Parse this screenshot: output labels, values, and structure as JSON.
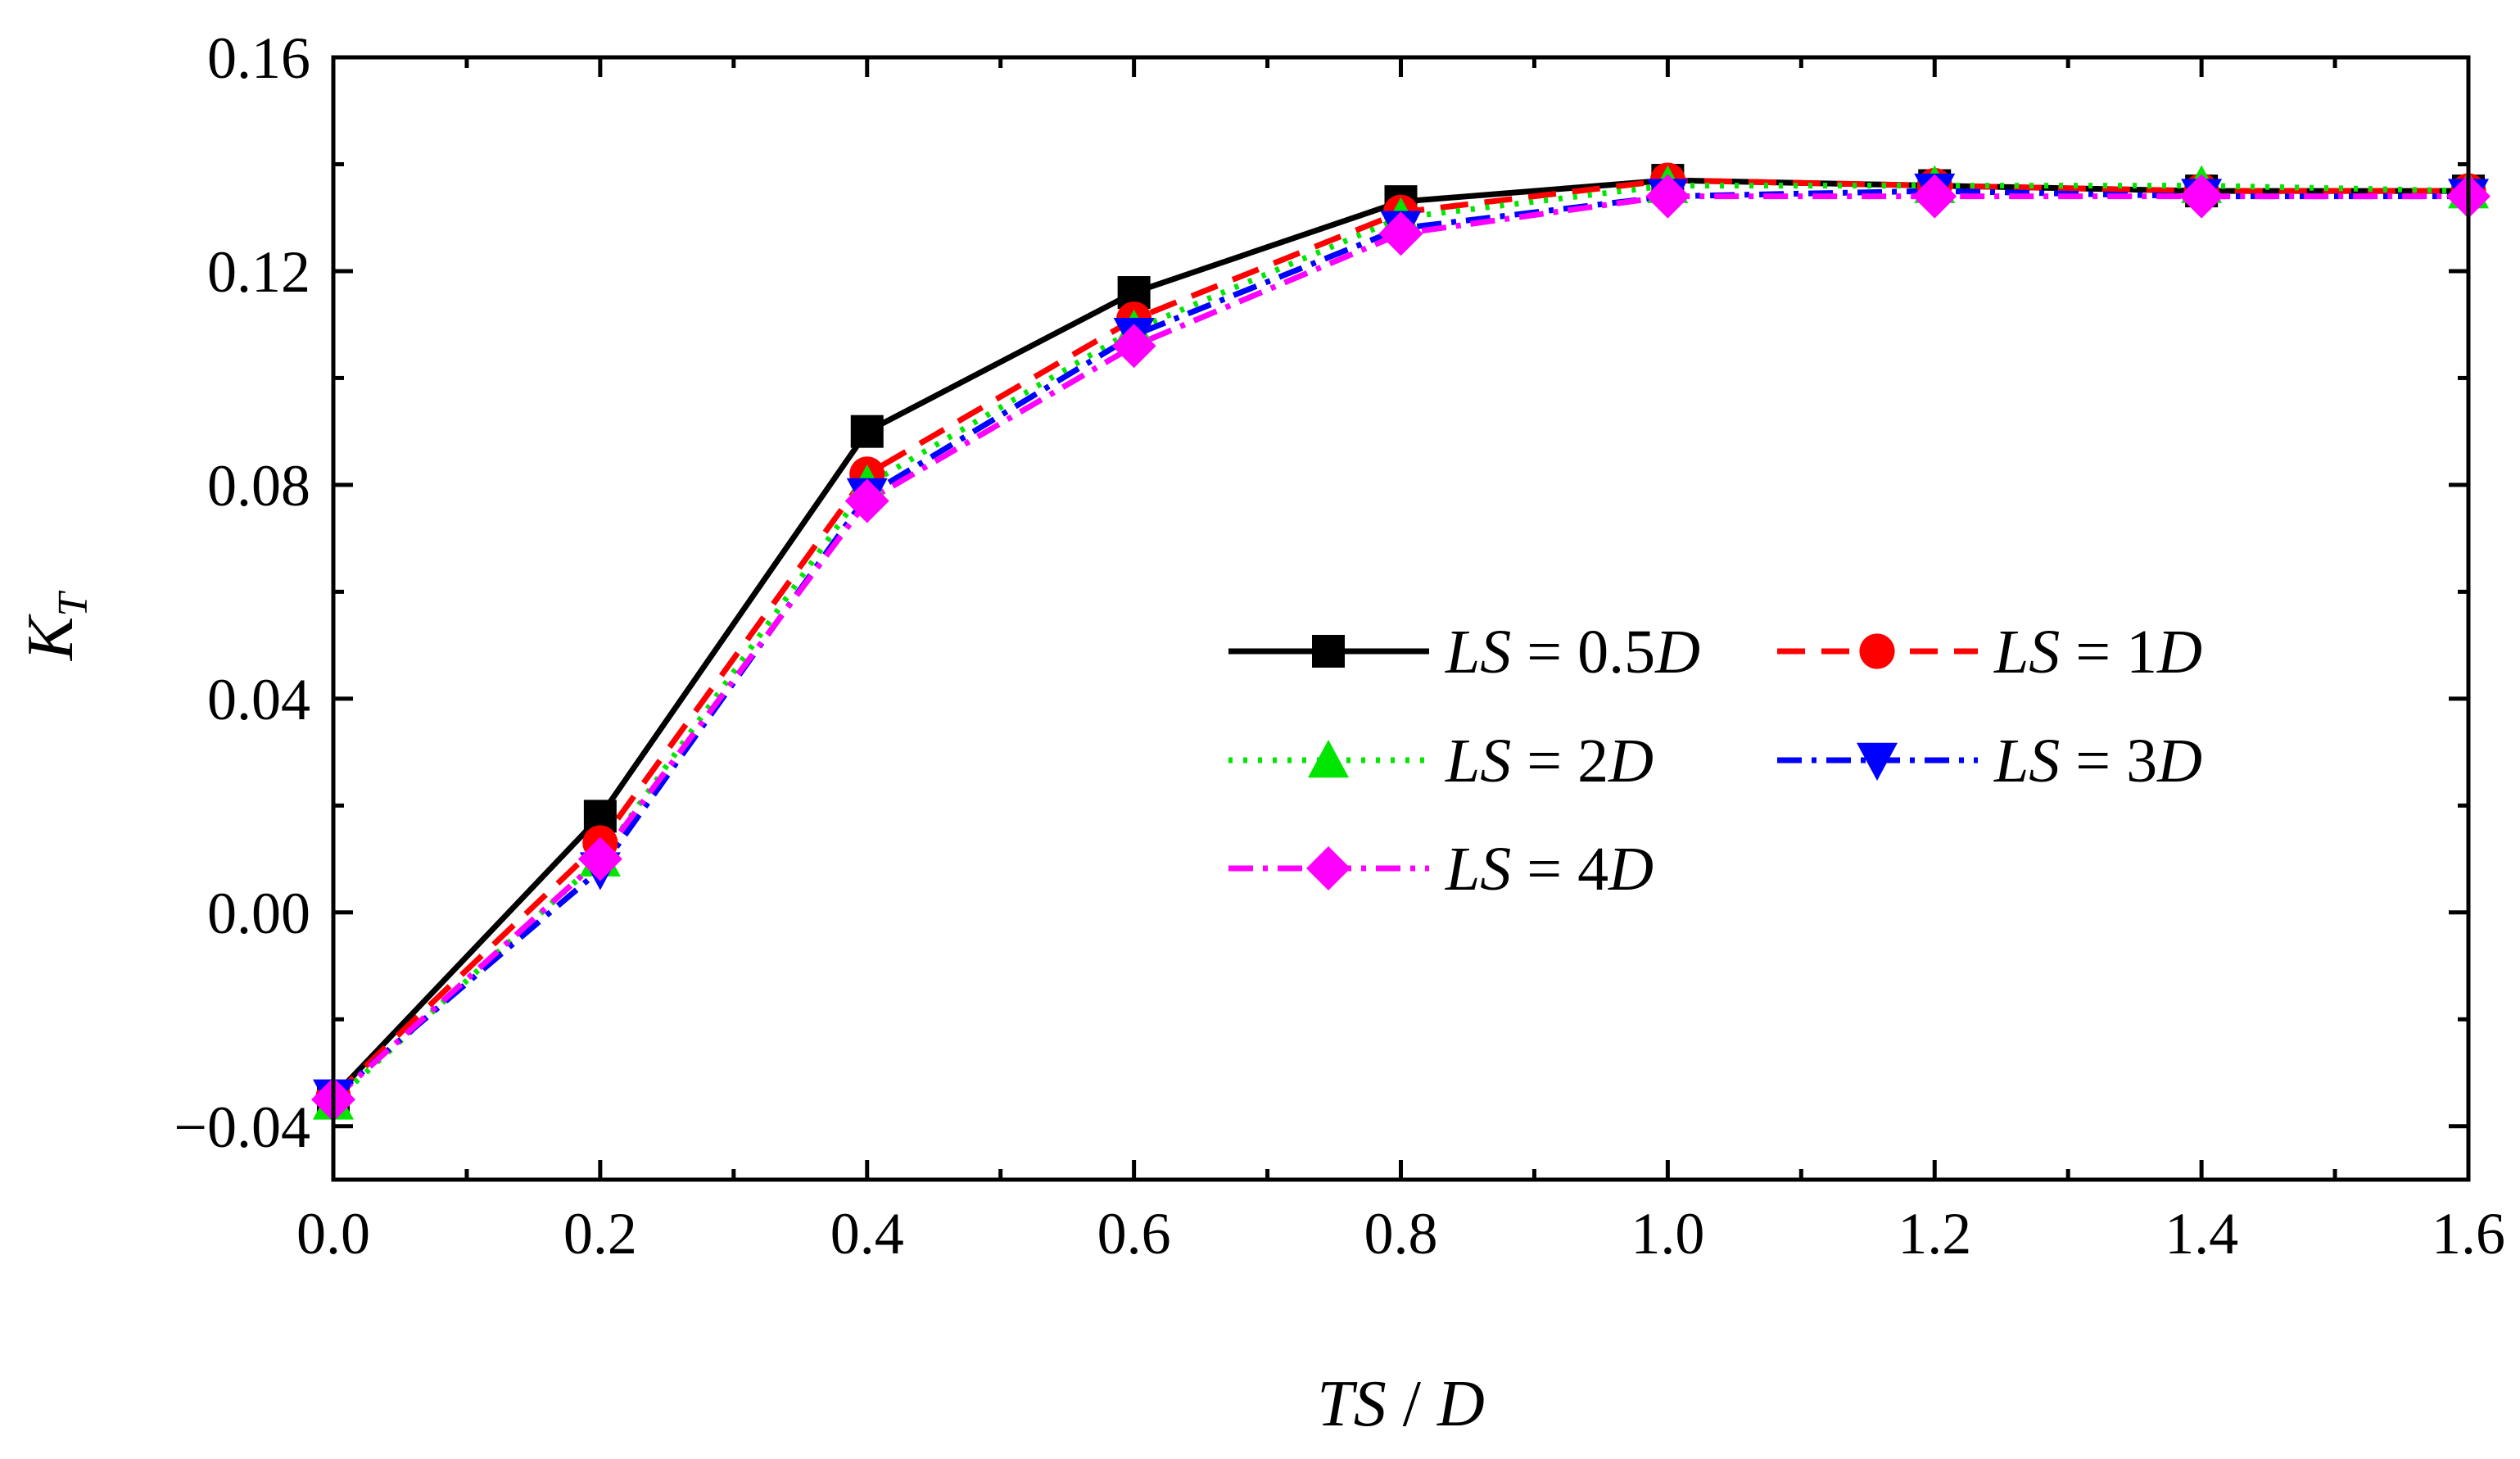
{
  "chart_data": {
    "type": "line",
    "title": "",
    "xlabel": "TS / D",
    "ylabel": "K_T",
    "xlim": [
      0.0,
      1.6
    ],
    "ylim": [
      -0.05,
      0.16
    ],
    "x_ticks": [
      "0.0",
      "0.2",
      "0.4",
      "0.6",
      "0.8",
      "1.0",
      "1.2",
      "1.4",
      "1.6"
    ],
    "y_ticks": [
      "−0.04",
      "0.00",
      "0.04",
      "0.08",
      "0.12",
      "0.16"
    ],
    "grid": false,
    "legend_position": "center-right",
    "x": [
      0.0,
      0.2,
      0.4,
      0.6,
      0.8,
      1.0,
      1.2,
      1.4,
      1.6
    ],
    "series": [
      {
        "name": "LS = 0.5D",
        "color": "#000000",
        "marker": "square",
        "dash": "solid",
        "values": [
          -0.0345,
          0.018,
          0.09,
          0.116,
          0.133,
          0.137,
          0.136,
          0.135,
          0.135
        ]
      },
      {
        "name": "LS = 1D",
        "color": "#ff0000",
        "marker": "circle",
        "dash": "dashed",
        "values": [
          -0.0345,
          0.013,
          0.082,
          0.111,
          0.131,
          0.137,
          0.136,
          0.135,
          0.135
        ]
      },
      {
        "name": "LS = 2D",
        "color": "#00e600",
        "marker": "triangle-up",
        "dash": "dotted",
        "values": [
          -0.0355,
          0.01,
          0.08,
          0.109,
          0.13,
          0.136,
          0.136,
          0.136,
          0.135
        ]
      },
      {
        "name": "LS = 3D",
        "color": "#0000ff",
        "marker": "triangle-down",
        "dash": "dash-dot",
        "values": [
          -0.0345,
          0.008,
          0.078,
          0.108,
          0.128,
          0.134,
          0.135,
          0.134,
          0.134
        ]
      },
      {
        "name": "LS = 4D",
        "color": "#ff00ff",
        "marker": "diamond",
        "dash": "dash-dot",
        "values": [
          -0.035,
          0.01,
          0.077,
          0.106,
          0.127,
          0.134,
          0.134,
          0.134,
          0.134
        ]
      }
    ]
  }
}
